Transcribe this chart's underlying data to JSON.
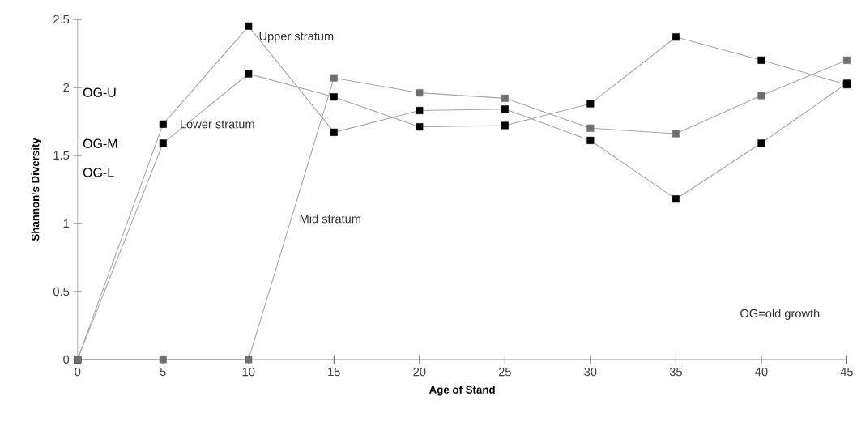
{
  "chart_data": {
    "type": "line",
    "xlabel": "Age of Stand",
    "ylabel": "Shannon's Diversity",
    "x": [
      0,
      5,
      10,
      15,
      20,
      25,
      30,
      35,
      40,
      45
    ],
    "series": [
      {
        "name": "Upper stratum",
        "color": "#000000",
        "values": [
          0,
          1.73,
          2.45,
          1.67,
          1.83,
          1.84,
          1.61,
          1.18,
          1.59,
          2.03
        ]
      },
      {
        "name": "Lower stratum",
        "color": "#000000",
        "values": [
          0,
          1.59,
          2.1,
          1.93,
          1.71,
          1.72,
          1.88,
          2.37,
          2.2,
          2.02
        ]
      },
      {
        "name": "Mid stratum",
        "color": "#707070",
        "values": [
          0,
          0,
          0,
          2.07,
          1.96,
          1.92,
          1.7,
          1.66,
          1.94,
          2.2
        ]
      }
    ],
    "xlim": [
      0,
      45
    ],
    "xticks": [
      0,
      5,
      10,
      15,
      20,
      25,
      30,
      35,
      40,
      45
    ],
    "ylim": [
      0,
      2.5
    ],
    "yticks": [
      0,
      0.5,
      1,
      1.5,
      2,
      2.5
    ],
    "annotations": [
      "OG-U",
      "OG-M",
      "OG-L",
      "OG=old growth"
    ],
    "grid": false,
    "legend": false,
    "marker": "square",
    "line_style": "solid"
  }
}
